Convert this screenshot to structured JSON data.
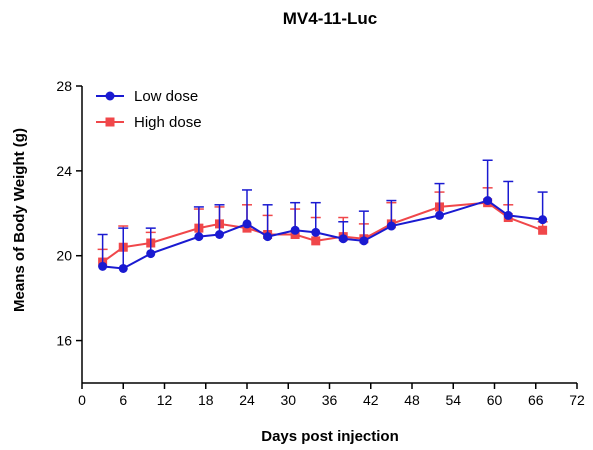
{
  "chart_data": {
    "type": "line",
    "title": "MV4-11-Luc",
    "xlabel": "Days post injection",
    "ylabel": "Means of Body Weight (g)",
    "xlim": [
      0,
      72
    ],
    "ylim": [
      14,
      28
    ],
    "xticks": [
      0,
      6,
      12,
      18,
      24,
      30,
      36,
      42,
      48,
      54,
      60,
      66,
      72
    ],
    "yticks": [
      16,
      20,
      24,
      28
    ],
    "legend_position": "top-left",
    "grid": false,
    "series": [
      {
        "name": "Low dose",
        "color": "#1a1ad1",
        "marker": "circle",
        "x": [
          3,
          6,
          10,
          17,
          20,
          24,
          27,
          31,
          34,
          38,
          41,
          45,
          52,
          59,
          62,
          67
        ],
        "y": [
          19.5,
          19.4,
          20.1,
          20.9,
          21.0,
          21.5,
          20.9,
          21.2,
          21.1,
          20.8,
          20.7,
          21.4,
          21.9,
          22.6,
          21.9,
          21.7
        ],
        "error": [
          1.5,
          1.9,
          1.2,
          1.4,
          1.4,
          1.6,
          1.5,
          1.3,
          1.4,
          0.8,
          1.4,
          1.2,
          1.5,
          1.9,
          1.6,
          1.3
        ]
      },
      {
        "name": "High dose",
        "color": "#f0474a",
        "marker": "square",
        "x": [
          3,
          6,
          10,
          17,
          20,
          24,
          27,
          31,
          34,
          38,
          41,
          45,
          52,
          59,
          62,
          67
        ],
        "y": [
          19.7,
          20.4,
          20.6,
          21.3,
          21.5,
          21.3,
          21.0,
          21.0,
          20.7,
          20.9,
          20.8,
          21.5,
          22.3,
          22.5,
          21.8,
          21.2
        ],
        "error": [
          0.6,
          1.0,
          0.5,
          0.9,
          0.8,
          1.1,
          0.9,
          1.2,
          1.1,
          0.9,
          0.7,
          1.0,
          0.7,
          0.7,
          0.6,
          0.4
        ]
      }
    ]
  }
}
